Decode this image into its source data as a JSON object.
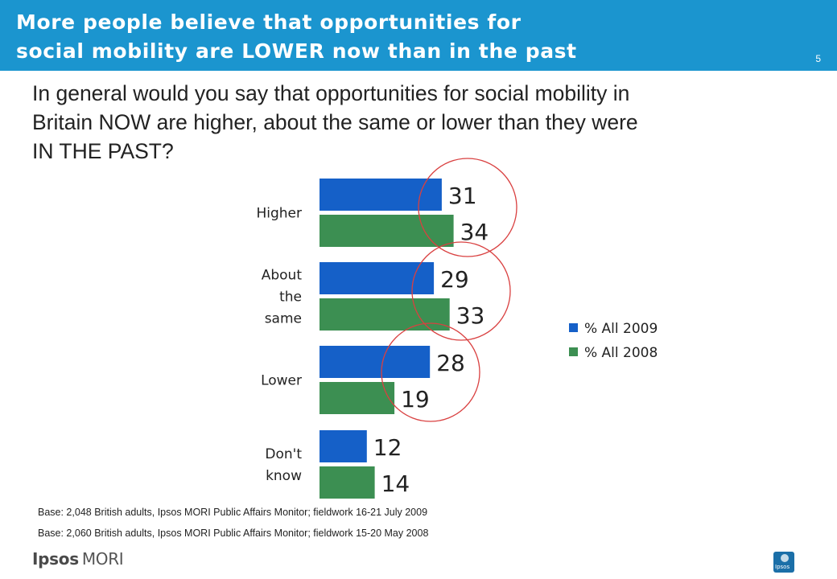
{
  "header": {
    "title_line1": "More people believe that opportunities for",
    "title_line2": "social mobility are LOWER now than in the past",
    "page_number": "5",
    "background_color": "#1B95CF"
  },
  "question": {
    "line1": "In general would you say that opportunities for social mobility in",
    "line2": "Britain NOW are higher, about the same or lower than they were",
    "line3": "IN THE PAST?"
  },
  "chart_data": {
    "type": "bar",
    "orientation": "horizontal",
    "categories": [
      [
        "Higher"
      ],
      [
        "About",
        "the",
        "same"
      ],
      [
        "Lower"
      ],
      [
        "Don't",
        "know"
      ]
    ],
    "series": [
      {
        "name": "% All 2009",
        "color": "#1560C8",
        "values": [
          31,
          29,
          28,
          12
        ]
      },
      {
        "name": "% All 2008",
        "color": "#3C8F52",
        "values": [
          34,
          33,
          19,
          14
        ]
      }
    ],
    "xlim": [
      0,
      100
    ],
    "legend_position": "right",
    "grid": false,
    "highlight_circles": "red circles around the value labels of Higher, About the same and Lower"
  },
  "footnotes": {
    "base_2009": "Base: 2,048 British adults, Ipsos MORI Public Affairs Monitor; fieldwork 16-21 July 2009",
    "base_2008": "Base: 2,060 British adults, Ipsos MORI Public Affairs Monitor; fieldwork 15-20 May 2008"
  },
  "branding": {
    "logo_part1": "Ipsos",
    "logo_part2": "MORI",
    "badge_text": "Ipsos"
  }
}
